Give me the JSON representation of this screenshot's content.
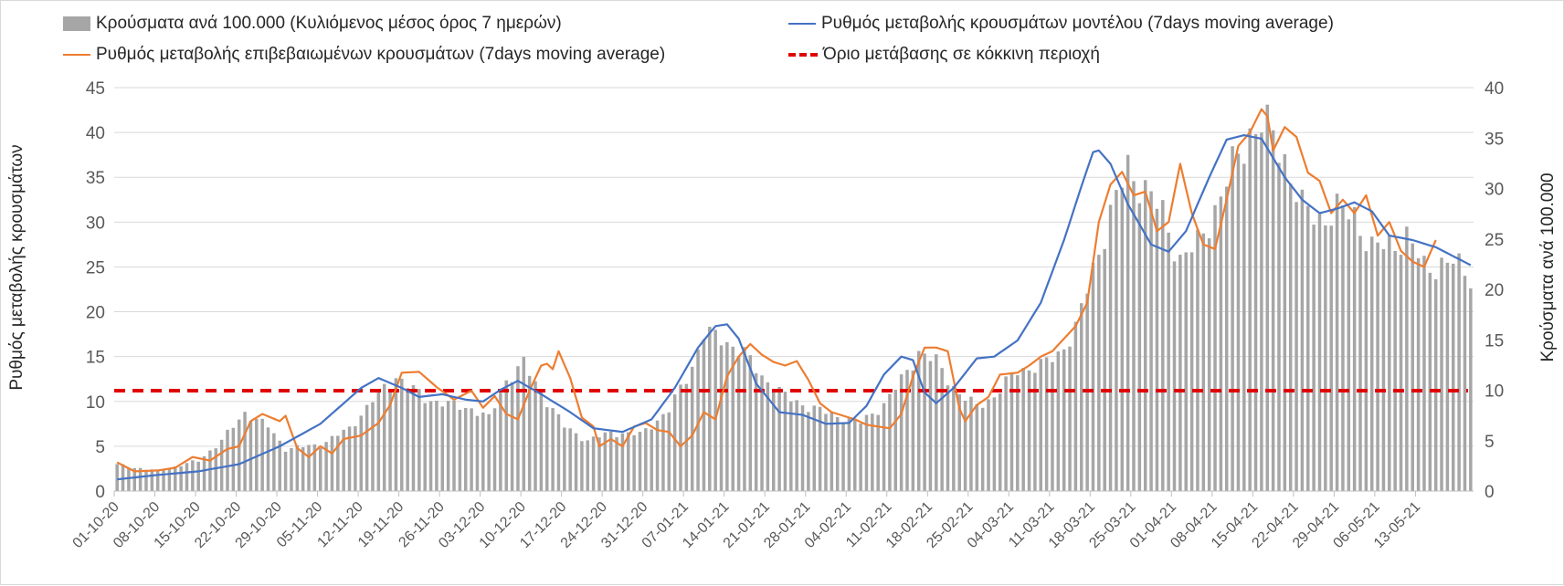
{
  "chart_data": {
    "type": "bar+line",
    "legend": {
      "bars": "Κρούσματα ανά 100.000 (Κυλιόμενος μέσος όρος 7 ημερών)",
      "model": "Ρυθμός μεταβολής κρουσμάτων μοντέλου (7days moving average)",
      "confirmed": "Ρυθμός μεταβολής επιβεβαιωμένων κρουσμάτων (7days moving average)",
      "threshold": "Όριο μετάβασης σε κόκκινη περιοχή"
    },
    "y_left_label": "Ρυθμός μεταβολής κρουσμάτων",
    "y_right_label": "Κρούσματα ανά 100.000",
    "y_left_ticks": [
      "0",
      "5",
      "10",
      "15",
      "20",
      "25",
      "30",
      "35",
      "40",
      "45"
    ],
    "y_right_ticks": [
      "0",
      "5",
      "10",
      "15",
      "20",
      "25",
      "30",
      "35",
      "40"
    ],
    "y_left_range": [
      0,
      45
    ],
    "y_right_range": [
      0,
      40
    ],
    "x_start": "01-10-20",
    "x_end": "18-05-21",
    "x_ticks": [
      "01-10-20",
      "08-10-20",
      "15-10-20",
      "22-10-20",
      "29-10-20",
      "05-11-20",
      "12-11-20",
      "19-11-20",
      "26-11-20",
      "03-12-20",
      "10-12-20",
      "17-12-20",
      "24-12-20",
      "31-12-20",
      "07-01-21",
      "14-01-21",
      "21-01-21",
      "28-01-21",
      "04-02-21",
      "11-02-21",
      "18-02-21",
      "25-02-21",
      "04-03-21",
      "11-03-21",
      "18-03-21",
      "25-03-21",
      "01-04-21",
      "08-04-21",
      "15-04-21",
      "22-04-21",
      "29-04-21",
      "06-05-21",
      "13-05-21"
    ],
    "threshold_value": 11.2,
    "bars_right_axis_anchors": [
      [
        0,
        2.6
      ],
      [
        7,
        2.0
      ],
      [
        14,
        3.0
      ],
      [
        18,
        5.0
      ],
      [
        22,
        7.8
      ],
      [
        26,
        6.4
      ],
      [
        29,
        4.2
      ],
      [
        35,
        4.6
      ],
      [
        40,
        6.2
      ],
      [
        44,
        9.0
      ],
      [
        48,
        11.4
      ],
      [
        53,
        9.2
      ],
      [
        57,
        8.6
      ],
      [
        61,
        8.2
      ],
      [
        64,
        7.2
      ],
      [
        67,
        11.0
      ],
      [
        70,
        12.6
      ],
      [
        73,
        9.8
      ],
      [
        77,
        6.4
      ],
      [
        81,
        5.0
      ],
      [
        85,
        5.8
      ],
      [
        90,
        5.6
      ],
      [
        95,
        8.0
      ],
      [
        99,
        12.4
      ],
      [
        101,
        15.6
      ],
      [
        104,
        15.2
      ],
      [
        108,
        13.6
      ],
      [
        111,
        11.4
      ],
      [
        115,
        9.4
      ],
      [
        118,
        8.6
      ],
      [
        121,
        8.0
      ],
      [
        125,
        7.2
      ],
      [
        128,
        6.8
      ],
      [
        132,
        8.6
      ],
      [
        135,
        11.0
      ],
      [
        138,
        13.8
      ],
      [
        141,
        12.8
      ],
      [
        145,
        9.6
      ],
      [
        148,
        8.4
      ],
      [
        151,
        9.4
      ],
      [
        155,
        12.0
      ],
      [
        159,
        12.4
      ],
      [
        162,
        13.6
      ],
      [
        165,
        16.0
      ],
      [
        169,
        24.0
      ],
      [
        172,
        29.0
      ],
      [
        174,
        32.0
      ],
      [
        177,
        30.0
      ],
      [
        180,
        27.4
      ],
      [
        183,
        23.0
      ],
      [
        186,
        24.4
      ],
      [
        189,
        28.0
      ],
      [
        192,
        32.0
      ],
      [
        195,
        35.6
      ],
      [
        197,
        36.4
      ],
      [
        199,
        35.2
      ],
      [
        201,
        33.0
      ],
      [
        204,
        28.0
      ],
      [
        207,
        27.0
      ],
      [
        210,
        27.8
      ],
      [
        213,
        27.4
      ],
      [
        216,
        24.0
      ],
      [
        219,
        24.4
      ],
      [
        222,
        25.2
      ],
      [
        225,
        22.2
      ],
      [
        227,
        22.4
      ],
      [
        230,
        22.6
      ],
      [
        233,
        21.4
      ]
    ],
    "model_anchors": [
      [
        0,
        1.3
      ],
      [
        7,
        1.8
      ],
      [
        14,
        2.2
      ],
      [
        21,
        3.0
      ],
      [
        28,
        5.0
      ],
      [
        35,
        7.5
      ],
      [
        42,
        11.5
      ],
      [
        45,
        12.6
      ],
      [
        49,
        11.5
      ],
      [
        52,
        10.5
      ],
      [
        56,
        10.8
      ],
      [
        60,
        10.2
      ],
      [
        63,
        10.0
      ],
      [
        66,
        11.3
      ],
      [
        69,
        12.3
      ],
      [
        73,
        10.8
      ],
      [
        78,
        8.8
      ],
      [
        82,
        7.0
      ],
      [
        87,
        6.6
      ],
      [
        92,
        8.0
      ],
      [
        96,
        11.5
      ],
      [
        100,
        16.0
      ],
      [
        103,
        18.4
      ],
      [
        105,
        18.6
      ],
      [
        107,
        17.0
      ],
      [
        110,
        12.0
      ],
      [
        114,
        8.8
      ],
      [
        118,
        8.5
      ],
      [
        122,
        7.5
      ],
      [
        126,
        7.6
      ],
      [
        129,
        9.5
      ],
      [
        132,
        13.0
      ],
      [
        135,
        15.0
      ],
      [
        137,
        14.6
      ],
      [
        139,
        11.0
      ],
      [
        141,
        9.8
      ],
      [
        144,
        11.5
      ],
      [
        148,
        14.8
      ],
      [
        151,
        15.0
      ],
      [
        155,
        16.8
      ],
      [
        159,
        21.0
      ],
      [
        163,
        28.0
      ],
      [
        166,
        34.0
      ],
      [
        168,
        37.8
      ],
      [
        169,
        38.0
      ],
      [
        171,
        36.5
      ],
      [
        174,
        32.0
      ],
      [
        178,
        27.5
      ],
      [
        181,
        26.7
      ],
      [
        184,
        29.0
      ],
      [
        188,
        35.0
      ],
      [
        191,
        39.2
      ],
      [
        194,
        39.7
      ],
      [
        197,
        39.3
      ],
      [
        201,
        35.0
      ],
      [
        204,
        32.5
      ],
      [
        207,
        31.0
      ],
      [
        210,
        31.5
      ],
      [
        213,
        32.2
      ],
      [
        216,
        31.2
      ],
      [
        219,
        28.5
      ],
      [
        223,
        28.0
      ],
      [
        227,
        27.2
      ],
      [
        230,
        26.2
      ],
      [
        233,
        25.2
      ]
    ],
    "confirmed_anchors": [
      [
        0,
        3.2
      ],
      [
        3,
        2.2
      ],
      [
        7,
        2.3
      ],
      [
        10,
        2.6
      ],
      [
        13,
        3.8
      ],
      [
        16,
        3.4
      ],
      [
        19,
        4.7
      ],
      [
        21,
        5.0
      ],
      [
        23,
        7.8
      ],
      [
        25,
        8.6
      ],
      [
        28,
        7.8
      ],
      [
        29,
        8.4
      ],
      [
        31,
        4.8
      ],
      [
        33,
        3.8
      ],
      [
        35,
        5.0
      ],
      [
        37,
        4.2
      ],
      [
        39,
        5.8
      ],
      [
        42,
        6.2
      ],
      [
        45,
        7.6
      ],
      [
        47,
        9.6
      ],
      [
        49,
        13.2
      ],
      [
        52,
        13.3
      ],
      [
        55,
        11.6
      ],
      [
        58,
        10.2
      ],
      [
        61,
        11.2
      ],
      [
        63,
        9.3
      ],
      [
        65,
        10.6
      ],
      [
        67,
        8.6
      ],
      [
        69,
        8.0
      ],
      [
        71,
        11.2
      ],
      [
        73,
        14.0
      ],
      [
        74,
        14.2
      ],
      [
        75,
        13.6
      ],
      [
        76,
        15.6
      ],
      [
        78,
        12.6
      ],
      [
        80,
        8.2
      ],
      [
        82,
        7.2
      ],
      [
        83,
        5.0
      ],
      [
        85,
        5.8
      ],
      [
        87,
        5.0
      ],
      [
        89,
        7.2
      ],
      [
        91,
        7.6
      ],
      [
        93,
        6.8
      ],
      [
        95,
        6.6
      ],
      [
        97,
        5.0
      ],
      [
        99,
        6.2
      ],
      [
        101,
        8.8
      ],
      [
        103,
        8.0
      ],
      [
        105,
        12.8
      ],
      [
        107,
        15.0
      ],
      [
        109,
        16.4
      ],
      [
        111,
        15.2
      ],
      [
        113,
        14.4
      ],
      [
        115,
        14.0
      ],
      [
        117,
        14.5
      ],
      [
        119,
        12.4
      ],
      [
        121,
        9.8
      ],
      [
        123,
        8.8
      ],
      [
        125,
        8.4
      ],
      [
        127,
        8.0
      ],
      [
        129,
        7.4
      ],
      [
        131,
        7.2
      ],
      [
        133,
        7.0
      ],
      [
        135,
        8.6
      ],
      [
        137,
        12.8
      ],
      [
        139,
        16.0
      ],
      [
        141,
        16.0
      ],
      [
        143,
        15.6
      ],
      [
        145,
        9.2
      ],
      [
        146,
        7.8
      ],
      [
        148,
        9.6
      ],
      [
        150,
        10.5
      ],
      [
        152,
        13.0
      ],
      [
        155,
        13.2
      ],
      [
        157,
        14.0
      ],
      [
        159,
        15.0
      ],
      [
        161,
        15.6
      ],
      [
        163,
        17.0
      ],
      [
        165,
        18.4
      ],
      [
        167,
        21.0
      ],
      [
        169,
        30.0
      ],
      [
        171,
        34.2
      ],
      [
        173,
        35.6
      ],
      [
        175,
        33.0
      ],
      [
        177,
        33.4
      ],
      [
        179,
        29.0
      ],
      [
        181,
        30.0
      ],
      [
        183,
        36.5
      ],
      [
        185,
        31.0
      ],
      [
        187,
        27.5
      ],
      [
        189,
        27.0
      ],
      [
        191,
        32.5
      ],
      [
        193,
        38.5
      ],
      [
        195,
        40.0
      ],
      [
        197,
        42.6
      ],
      [
        198,
        41.8
      ],
      [
        199,
        38.0
      ],
      [
        201,
        40.6
      ],
      [
        203,
        39.5
      ],
      [
        205,
        35.5
      ],
      [
        207,
        34.6
      ],
      [
        209,
        31.0
      ],
      [
        211,
        32.5
      ],
      [
        213,
        31.0
      ],
      [
        215,
        33.0
      ],
      [
        217,
        28.5
      ],
      [
        219,
        30.0
      ],
      [
        221,
        26.8
      ],
      [
        223,
        25.6
      ],
      [
        225,
        25.0
      ],
      [
        227,
        28.0
      ]
    ]
  }
}
